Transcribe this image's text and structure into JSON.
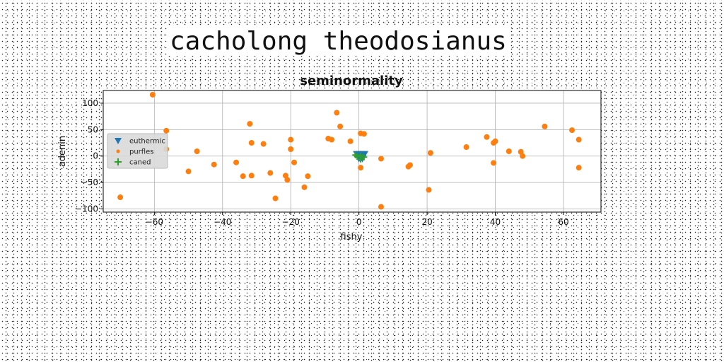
{
  "page": {
    "heading": "cacholong theodosianus"
  },
  "chart_data": {
    "type": "scatter",
    "title": "seminormality",
    "xlabel": "fishy",
    "ylabel": "adenin",
    "xlim": [
      -75,
      71
    ],
    "ylim": [
      -106,
      124
    ],
    "xticks": [
      -60,
      -40,
      -20,
      0,
      20,
      40,
      60
    ],
    "yticks": [
      -100,
      -50,
      0,
      50,
      100
    ],
    "grid": true,
    "legend_position": "center-left",
    "series": [
      {
        "name": "euthermic",
        "color": "#1f77b4",
        "marker": "triangle-down",
        "points": [
          [
            -0.5,
            3
          ],
          [
            0.5,
            3
          ],
          [
            1.5,
            3
          ],
          [
            0,
            -4
          ],
          [
            1,
            -4
          ]
        ]
      },
      {
        "name": "purfles",
        "color": "#ff7f0e",
        "marker": "circle",
        "points": [
          [
            -60.5,
            116
          ],
          [
            -70,
            -78
          ],
          [
            -56.5,
            48
          ],
          [
            -56.5,
            13
          ],
          [
            -50,
            -29
          ],
          [
            -47.5,
            9
          ],
          [
            -42.5,
            -16
          ],
          [
            -36,
            -12
          ],
          [
            -34,
            -38
          ],
          [
            -32,
            61
          ],
          [
            -31.5,
            25
          ],
          [
            -31.5,
            -37
          ],
          [
            -28,
            23
          ],
          [
            -26,
            -32
          ],
          [
            -24.5,
            -80
          ],
          [
            -21.5,
            -37
          ],
          [
            -21,
            -45
          ],
          [
            -20,
            31
          ],
          [
            -20,
            13
          ],
          [
            -19,
            -12
          ],
          [
            -16,
            -59
          ],
          [
            -15,
            -38
          ],
          [
            -9,
            33
          ],
          [
            -8,
            31
          ],
          [
            -6.5,
            82
          ],
          [
            -5.5,
            56
          ],
          [
            -2.5,
            28
          ],
          [
            0.5,
            43
          ],
          [
            1.5,
            42
          ],
          [
            0.5,
            -22
          ],
          [
            6.5,
            -5
          ],
          [
            6.5,
            -96
          ],
          [
            14.5,
            -20
          ],
          [
            15,
            -17
          ],
          [
            20.5,
            -64
          ],
          [
            21,
            6
          ],
          [
            31.5,
            17
          ],
          [
            37.5,
            36
          ],
          [
            39.5,
            -13
          ],
          [
            39.5,
            25
          ],
          [
            40,
            28
          ],
          [
            44,
            9
          ],
          [
            47.5,
            8
          ],
          [
            48,
            0
          ],
          [
            54.5,
            56
          ],
          [
            62.5,
            49
          ],
          [
            64.5,
            31
          ],
          [
            64.5,
            -22
          ]
        ]
      },
      {
        "name": "caned",
        "color": "#2ca02c",
        "marker": "plus",
        "points": [
          [
            -0.5,
            -1
          ],
          [
            0.5,
            1
          ],
          [
            1.5,
            -2
          ],
          [
            0.5,
            -6
          ],
          [
            -1,
            2
          ]
        ]
      }
    ]
  }
}
